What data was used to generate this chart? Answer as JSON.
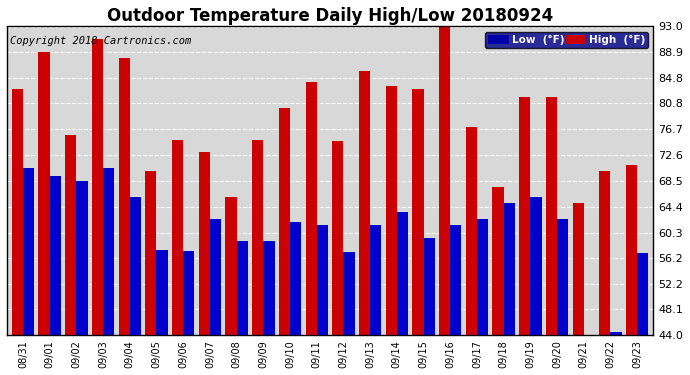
{
  "title": "Outdoor Temperature Daily High/Low 20180924",
  "copyright": "Copyright 2018 Cartronics.com",
  "legend_low": "Low  (°F)",
  "legend_high": "High  (°F)",
  "dates": [
    "08/31",
    "09/01",
    "09/02",
    "09/03",
    "09/04",
    "09/05",
    "09/06",
    "09/07",
    "09/08",
    "09/09",
    "09/10",
    "09/11",
    "09/12",
    "09/13",
    "09/14",
    "09/15",
    "09/16",
    "09/17",
    "09/18",
    "09/19",
    "09/20",
    "09/21",
    "09/22",
    "09/23"
  ],
  "high": [
    83.0,
    88.9,
    75.8,
    91.0,
    88.0,
    70.0,
    75.0,
    73.0,
    66.0,
    75.0,
    80.0,
    84.2,
    74.8,
    86.0,
    83.5,
    83.0,
    93.0,
    77.0,
    67.5,
    81.8,
    81.8,
    65.0,
    70.0,
    71.0
  ],
  "low": [
    70.5,
    69.3,
    68.5,
    70.5,
    66.0,
    57.5,
    57.3,
    62.5,
    59.0,
    59.0,
    62.0,
    61.5,
    57.2,
    61.5,
    63.5,
    59.5,
    61.5,
    62.5,
    65.0,
    66.0,
    62.5,
    44.0,
    44.5,
    57.0
  ],
  "ylim": [
    44.0,
    93.0
  ],
  "yticks": [
    44.0,
    48.1,
    52.2,
    56.2,
    60.3,
    64.4,
    68.5,
    72.6,
    76.7,
    80.8,
    84.8,
    88.9,
    93.0
  ],
  "bg_color": "#ffffff",
  "plot_bg": "#d8d8d8",
  "bar_color_low": "#0000cc",
  "bar_color_high": "#cc0000",
  "legend_bg_low": "#0000aa",
  "legend_bg_high": "#cc0000",
  "grid_color": "#ffffff",
  "title_fontsize": 12,
  "copyright_fontsize": 7.5,
  "bar_width": 0.42
}
